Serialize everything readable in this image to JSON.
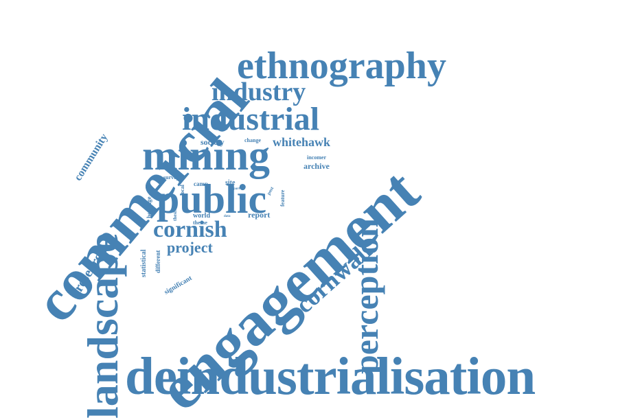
{
  "word_cloud": {
    "color": "#4682B4",
    "background": "#FFFFFF",
    "words": {
      "deindustrialisation": "deindustrialisation",
      "engagement": "engagement",
      "commercial": "commercial",
      "landscape": "landscape",
      "ethnography": "ethnography",
      "mining": "mining",
      "public": "public",
      "industrial": "industrial",
      "industry": "industry",
      "perception": "perception",
      "cornwall": "cornwall",
      "cornish": "cornish",
      "research": "research",
      "community": "community",
      "project": "project",
      "whitehawk": "whitehawk",
      "archive": "archive",
      "society": "society",
      "change": "change",
      "incomer": "incomer",
      "survey": "survey",
      "camp": "camp",
      "site": "site",
      "part": "part",
      "post": "post",
      "local": "local",
      "heritage": "heritage",
      "thesis": "thesis",
      "feature": "feature",
      "report": "report",
      "world": "world",
      "data": "data",
      "theme": "theme",
      "statistical": "statistical",
      "different": "different",
      "significant": "significant"
    }
  }
}
